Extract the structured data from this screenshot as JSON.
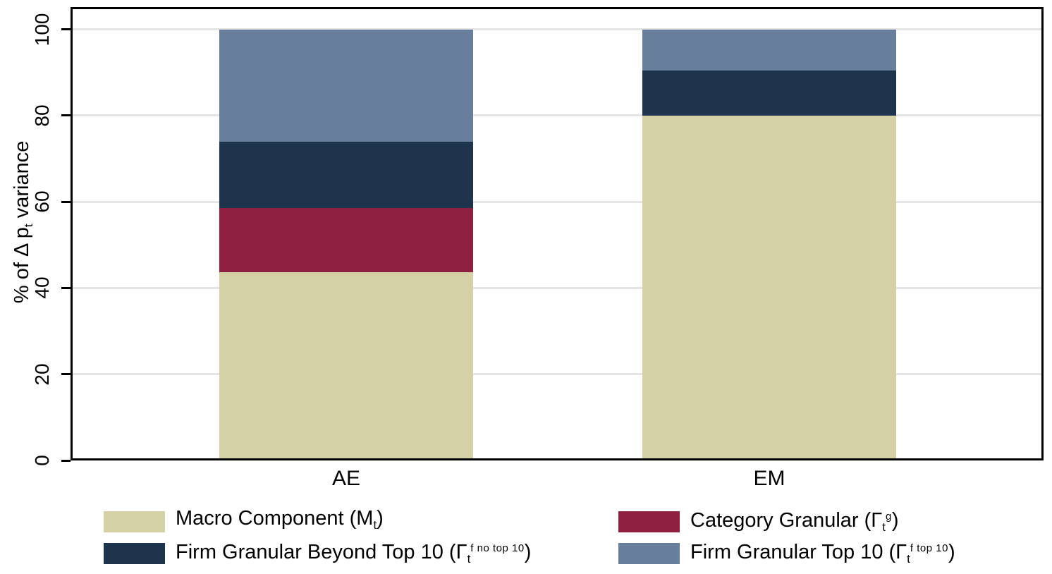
{
  "figure": {
    "ylabel": {
      "pre": "% of Δ p",
      "sub": "t",
      "post": " variance"
    },
    "yticks": [
      0,
      20,
      40,
      60,
      80,
      100
    ],
    "categories": [
      "AE",
      "EM"
    ]
  },
  "chart_data": {
    "type": "bar",
    "stacked": true,
    "categories": [
      "AE",
      "EM"
    ],
    "series": [
      {
        "name": "Macro Component (Mt)",
        "color": "#d5d1a6",
        "values": [
          43.7,
          80.0
        ]
      },
      {
        "name": "Category Granular (Γt^g)",
        "color": "#8e2142",
        "values": [
          14.8,
          0.0
        ]
      },
      {
        "name": "Firm Granular Beyond Top 10 (Γt^f no top 10)",
        "color": "#1e334c",
        "values": [
          15.4,
          10.4
        ]
      },
      {
        "name": "Firm Granular Top 10 (Γt^f top 10)",
        "color": "#677f9c",
        "values": [
          26.1,
          9.6
        ]
      }
    ],
    "title": "",
    "xlabel": "",
    "ylabel": "% of Δ pt variance",
    "ylim": [
      0,
      100
    ],
    "grid": true,
    "legend_position": "bottom"
  },
  "legend": {
    "items": [
      {
        "key": "macro-component",
        "pre": "Macro Component (M",
        "sub": "t",
        "sup": "",
        "post": ")",
        "color": "#d5d1a6"
      },
      {
        "key": "category-granular",
        "pre": "Category Granular (Γ",
        "sub": "t",
        "sup": "g",
        "post": ")",
        "color": "#8e2142"
      },
      {
        "key": "firm-beyond-top10",
        "pre": "Firm Granular Beyond Top 10 (Γ",
        "sub": "t",
        "sup": "f no top 10",
        "post": ")",
        "color": "#1e334c"
      },
      {
        "key": "firm-top10",
        "pre": "Firm Granular Top 10 (Γ",
        "sub": "t",
        "sup": "f top 10",
        "post": ")",
        "color": "#677f9c"
      }
    ]
  },
  "colors": {
    "grid": "#e4e4e4",
    "frame": "#000000",
    "background": "#ffffff"
  }
}
